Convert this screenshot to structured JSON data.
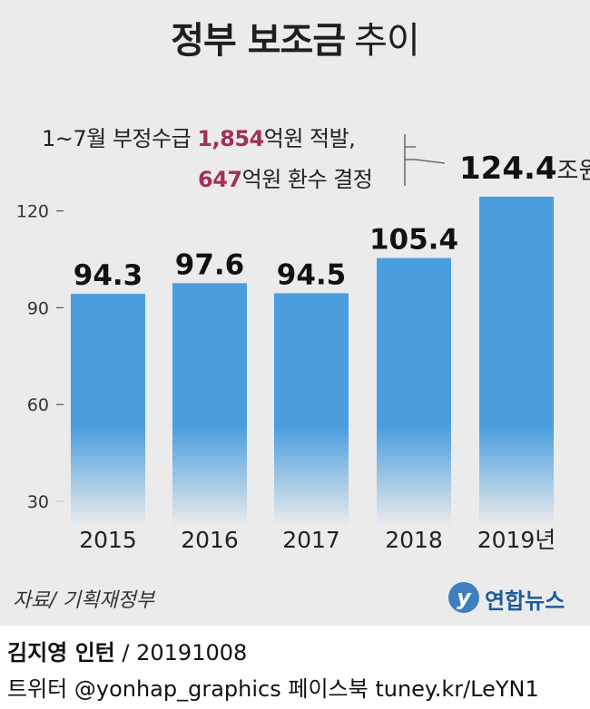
{
  "title": {
    "main": "정부 보조금",
    "rest": "추이"
  },
  "annotation": {
    "line1_pre": "1~7월 부정수급 ",
    "line1_hl": "1,854",
    "line1_post": "억원 적발,",
    "line2_hl": "647",
    "line2_post": "억원 환수 결정"
  },
  "callout": {
    "value": "124.4",
    "unit": "조원"
  },
  "chart_data": {
    "type": "bar",
    "categories": [
      "2015",
      "2016",
      "2017",
      "2018",
      "2019년"
    ],
    "values": [
      94.3,
      97.6,
      94.5,
      105.4,
      124.4
    ],
    "value_labels": [
      "94.3",
      "97.6",
      "94.5",
      "105.4",
      ""
    ],
    "yticks": [
      30,
      60,
      90,
      120
    ],
    "ylim": [
      30,
      126
    ],
    "bar_color": "#4a9ede",
    "grid": false
  },
  "source": "자료/ 기획재정부",
  "logo": {
    "icon": "yonhap-logo-icon",
    "text": "연합뉴스"
  },
  "credit": {
    "name": "김지영 인턴",
    "date": " / 20191008"
  },
  "social": "트위터 @yonhap_graphics  페이스북 tuney.kr/LeYN1"
}
